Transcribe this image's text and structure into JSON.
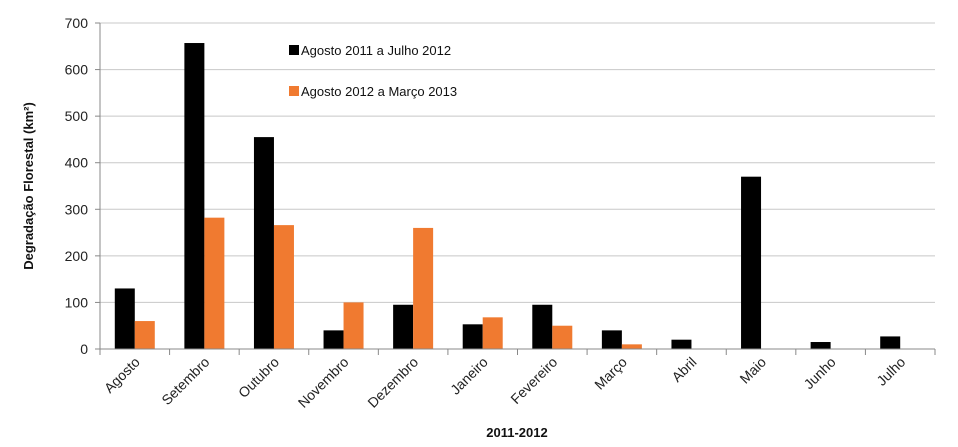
{
  "chart_data": {
    "type": "bar",
    "title": "",
    "xlabel": "2011-2012",
    "ylabel": "Degradação Florestal (km²)",
    "ylim": [
      0,
      700
    ],
    "yticks": [
      0,
      100,
      200,
      300,
      400,
      500,
      600,
      700
    ],
    "grid": true,
    "legend_position": "top-center",
    "categories": [
      "Agosto",
      "Setembro",
      "Outubro",
      "Novembro",
      "Dezembro",
      "Janeiro",
      "Fevereiro",
      "Março",
      "Abril",
      "Maio",
      "Junho",
      "Julho"
    ],
    "series": [
      {
        "name": "Agosto 2011 a Julho 2012",
        "color": "#000000",
        "values": [
          130,
          657,
          455,
          40,
          95,
          53,
          95,
          40,
          20,
          370,
          15,
          27
        ]
      },
      {
        "name": "Agosto 2012 a Março 2013",
        "color": "#f07a30",
        "values": [
          60,
          282,
          266,
          100,
          260,
          68,
          50,
          10,
          null,
          null,
          null,
          null
        ]
      }
    ]
  }
}
